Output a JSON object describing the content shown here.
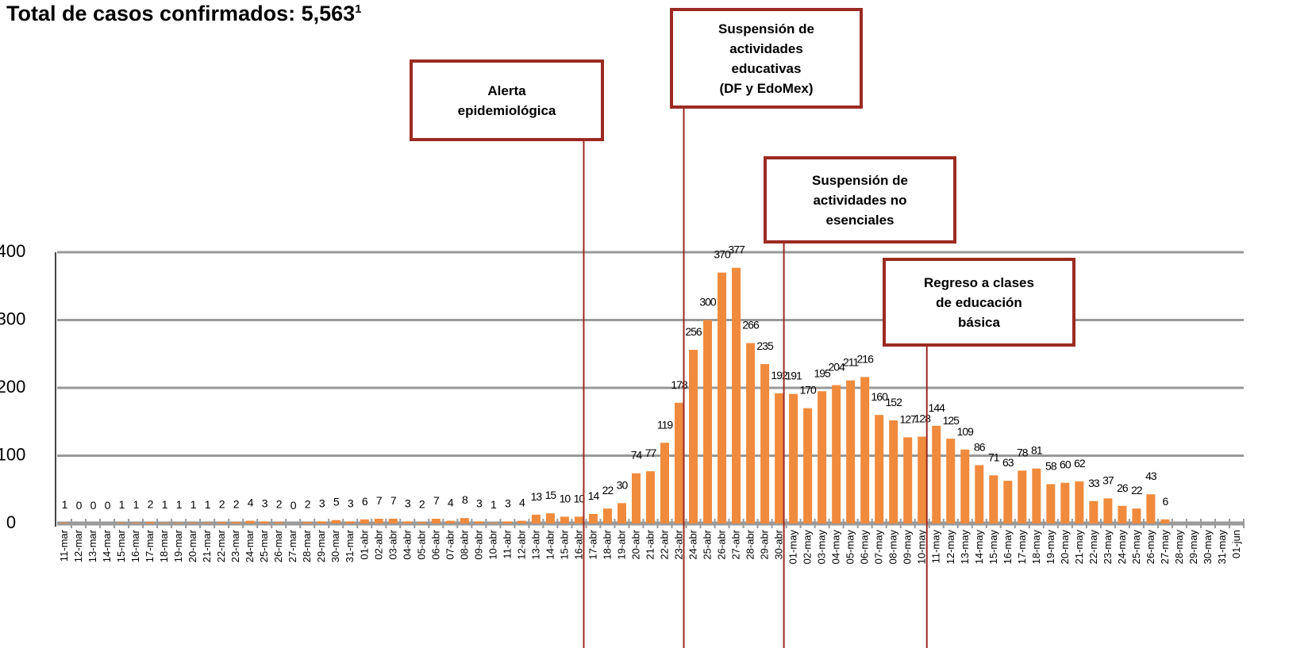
{
  "chart_data": {
    "type": "bar",
    "title": "Total de casos confirmados: 5,563",
    "title_note": "1",
    "categories": [
      "11-mar",
      "12-mar",
      "13-mar",
      "14-mar",
      "15-mar",
      "16-mar",
      "17-mar",
      "18-mar",
      "19-mar",
      "20-mar",
      "21-mar",
      "22-mar",
      "23-mar",
      "24-mar",
      "25-mar",
      "26-mar",
      "27-mar",
      "28-mar",
      "29-mar",
      "30-mar",
      "31-mar",
      "01-abr",
      "02-abr",
      "03-abr",
      "04-abr",
      "05-abr",
      "06-abr",
      "07-abr",
      "08-abr",
      "09-abr",
      "10-abr",
      "11-abr",
      "12-abr",
      "13-abr",
      "14-abr",
      "15-abr",
      "16-abr",
      "17-abr",
      "18-abr",
      "19-abr",
      "20-abr",
      "21-abr",
      "22-abr",
      "23-abr",
      "24-abr",
      "25-abr",
      "26-abr",
      "27-abr",
      "28-abr",
      "29-abr",
      "30-abr",
      "01-may",
      "02-may",
      "03-may",
      "04-may",
      "05-may",
      "06-may",
      "07-may",
      "08-may",
      "09-may",
      "10-may",
      "11-may",
      "12-may",
      "13-may",
      "14-may",
      "15-may",
      "16-may",
      "17-may",
      "18-may",
      "19-may",
      "20-may",
      "21-may",
      "22-may",
      "23-may",
      "24-may",
      "25-may",
      "26-may",
      "27-may",
      "28-may",
      "29-may",
      "30-may",
      "31-may",
      "01-jun"
    ],
    "values": [
      1,
      0,
      0,
      0,
      1,
      1,
      2,
      1,
      1,
      1,
      1,
      2,
      2,
      4,
      3,
      2,
      0,
      2,
      3,
      5,
      3,
      6,
      7,
      7,
      3,
      2,
      7,
      4,
      8,
      3,
      1,
      3,
      4,
      13,
      15,
      10,
      10,
      14,
      22,
      30,
      74,
      77,
      119,
      178,
      256,
      300,
      370,
      377,
      266,
      235,
      192,
      191,
      170,
      195,
      204,
      211,
      216,
      160,
      152,
      127,
      128,
      144,
      125,
      109,
      86,
      71,
      63,
      78,
      81,
      58,
      60,
      62,
      33,
      37,
      26,
      22,
      43,
      6,
      null,
      null,
      null,
      null,
      null
    ],
    "color": "#f08a3c",
    "ylim": [
      0,
      400
    ],
    "yticks": [
      0,
      100,
      200,
      300,
      400
    ],
    "grid": true,
    "annotations": [
      {
        "text": [
          "Alerta",
          "epidemiológica"
        ],
        "x": "16-abr"
      },
      {
        "text": [
          "Suspensión de",
          "actividades",
          "educativas",
          "(DF y EdoMex)"
        ],
        "x": "23-abr"
      },
      {
        "text": [
          "Suspensión de",
          "actividades no",
          "esenciales"
        ],
        "x": "30-abr"
      },
      {
        "text": [
          "Regreso a clases",
          "de educación",
          "básica"
        ],
        "x": "10-may"
      }
    ]
  }
}
